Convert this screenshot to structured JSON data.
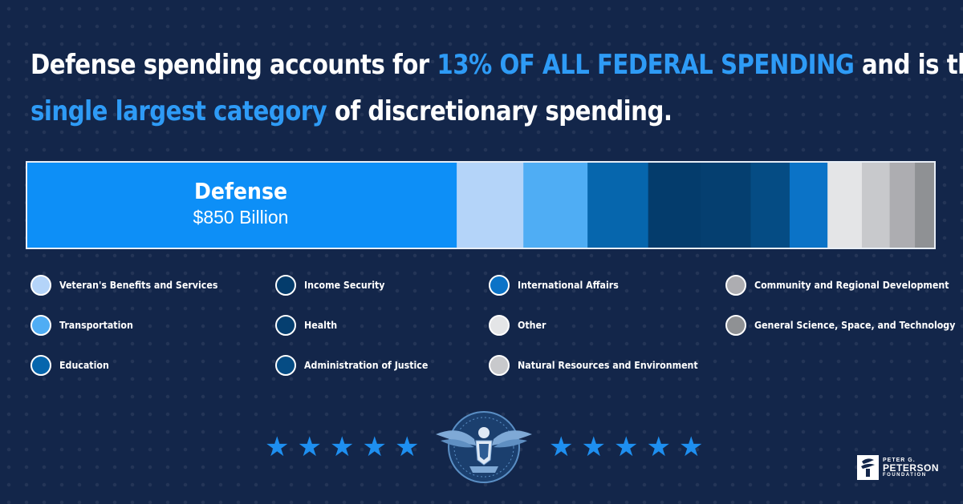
{
  "headline": {
    "part1": "Defense spending accounts for ",
    "highlight1": "13% OF ALL FEDERAL SPENDING",
    "part2": " and is the",
    "highlight2": "single largest category",
    "part3": " of discretionary spending."
  },
  "colors": {
    "background": "#13264a",
    "highlight": "#2e9bf6",
    "defense": "#0d8ff7",
    "star": "#1e8ff0"
  },
  "chart_data": {
    "type": "bar",
    "orientation": "horizontal-stacked",
    "unit": "Billion",
    "categories": [
      "Defense",
      "Veteran's Benefits and Services",
      "Transportation",
      "Education",
      "Income Security",
      "Health",
      "Administration of Justice",
      "International Affairs",
      "Other",
      "Natural Resources and Environment",
      "Community and Regional Development",
      "General Science, Space, and Technology"
    ],
    "values": [
      850,
      132,
      127,
      120,
      104,
      99,
      77,
      75,
      68,
      55,
      50,
      38
    ],
    "colors": [
      "#0d8ff7",
      "#b4d4f9",
      "#4fadf4",
      "#0666ad",
      "#043c6c",
      "#053f70",
      "#054c84",
      "#0b73c7",
      "#e4e5e7",
      "#c8c9cc",
      "#adadb1",
      "#8f9194"
    ],
    "data_labels": [
      {
        "title": "Defense",
        "value": "$850 Billion"
      }
    ],
    "grid": false,
    "legend_position": "bottom",
    "legend": [
      {
        "label": "Veteran's Benefits and Services",
        "color": "#b4d4f9"
      },
      {
        "label": "Income Security",
        "color": "#043c6c"
      },
      {
        "label": "International Affairs",
        "color": "#0b73c7"
      },
      {
        "label": "Community and Regional Development",
        "color": "#adadb1"
      },
      {
        "label": "Transportation",
        "color": "#4fadf4"
      },
      {
        "label": "Health",
        "color": "#053f70"
      },
      {
        "label": "Other",
        "color": "#e4e5e7"
      },
      {
        "label": "General Science, Space, and Technology",
        "color": "#8f9194"
      },
      {
        "label": "Education",
        "color": "#0666ad"
      },
      {
        "label": "Administration of Justice",
        "color": "#054c84"
      },
      {
        "label": "Natural Resources and Environment",
        "color": "#c8c9cc"
      }
    ]
  },
  "footer": {
    "stars_left": [
      "star",
      "star",
      "star",
      "star",
      "star"
    ],
    "stars_right": [
      "star",
      "star",
      "star",
      "star",
      "star"
    ],
    "seal_icon": "eagle-seal-icon",
    "logo": {
      "line1": "PETER G.",
      "line2": "PETERSON",
      "line3": "FOUNDATION",
      "icon": "torch-icon"
    }
  }
}
